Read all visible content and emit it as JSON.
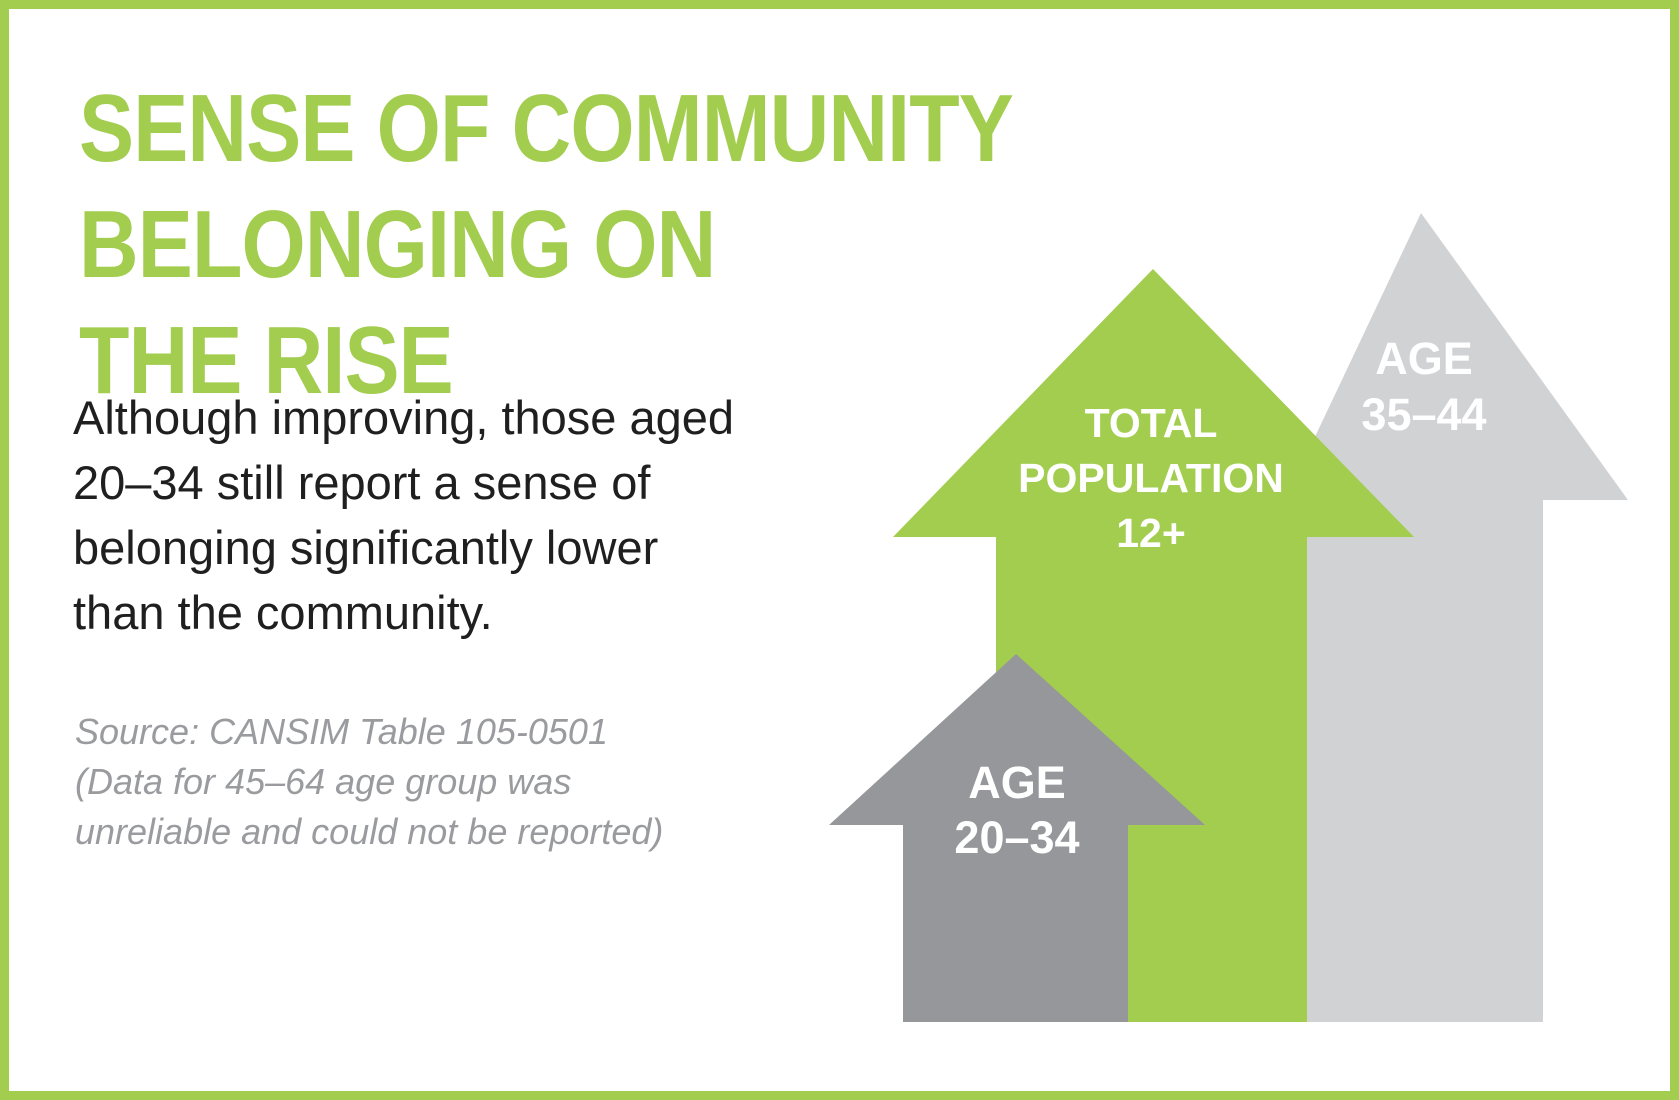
{
  "title_line1": "SENSE OF COMMUNITY BELONGING ON",
  "title_line2": "THE RISE",
  "body": {
    "line1": "Although improving, those aged",
    "line2": "20–34 still report a sense of",
    "line3": "belonging significantly lower",
    "line4": "than the community."
  },
  "source": {
    "line1": "Source: CANSIM Table 105-0501",
    "line2": "(Data for 45–64 age group was",
    "line3": "unreliable and could not be reported)"
  },
  "arrows": {
    "age_35_44": {
      "line1": "AGE",
      "line2": "35–44",
      "color": "#d1d2d4"
    },
    "total": {
      "line1": "TOTAL",
      "line2": "POPULATION",
      "line3": "12+",
      "color": "#a2cd4f"
    },
    "age_20_34": {
      "line1": "AGE",
      "line2": "20–34",
      "color": "#96979a"
    }
  },
  "colors": {
    "accent_green": "#a2cd4f",
    "text_dark": "#1f1f1f",
    "source_gray": "#9a9b9e"
  }
}
